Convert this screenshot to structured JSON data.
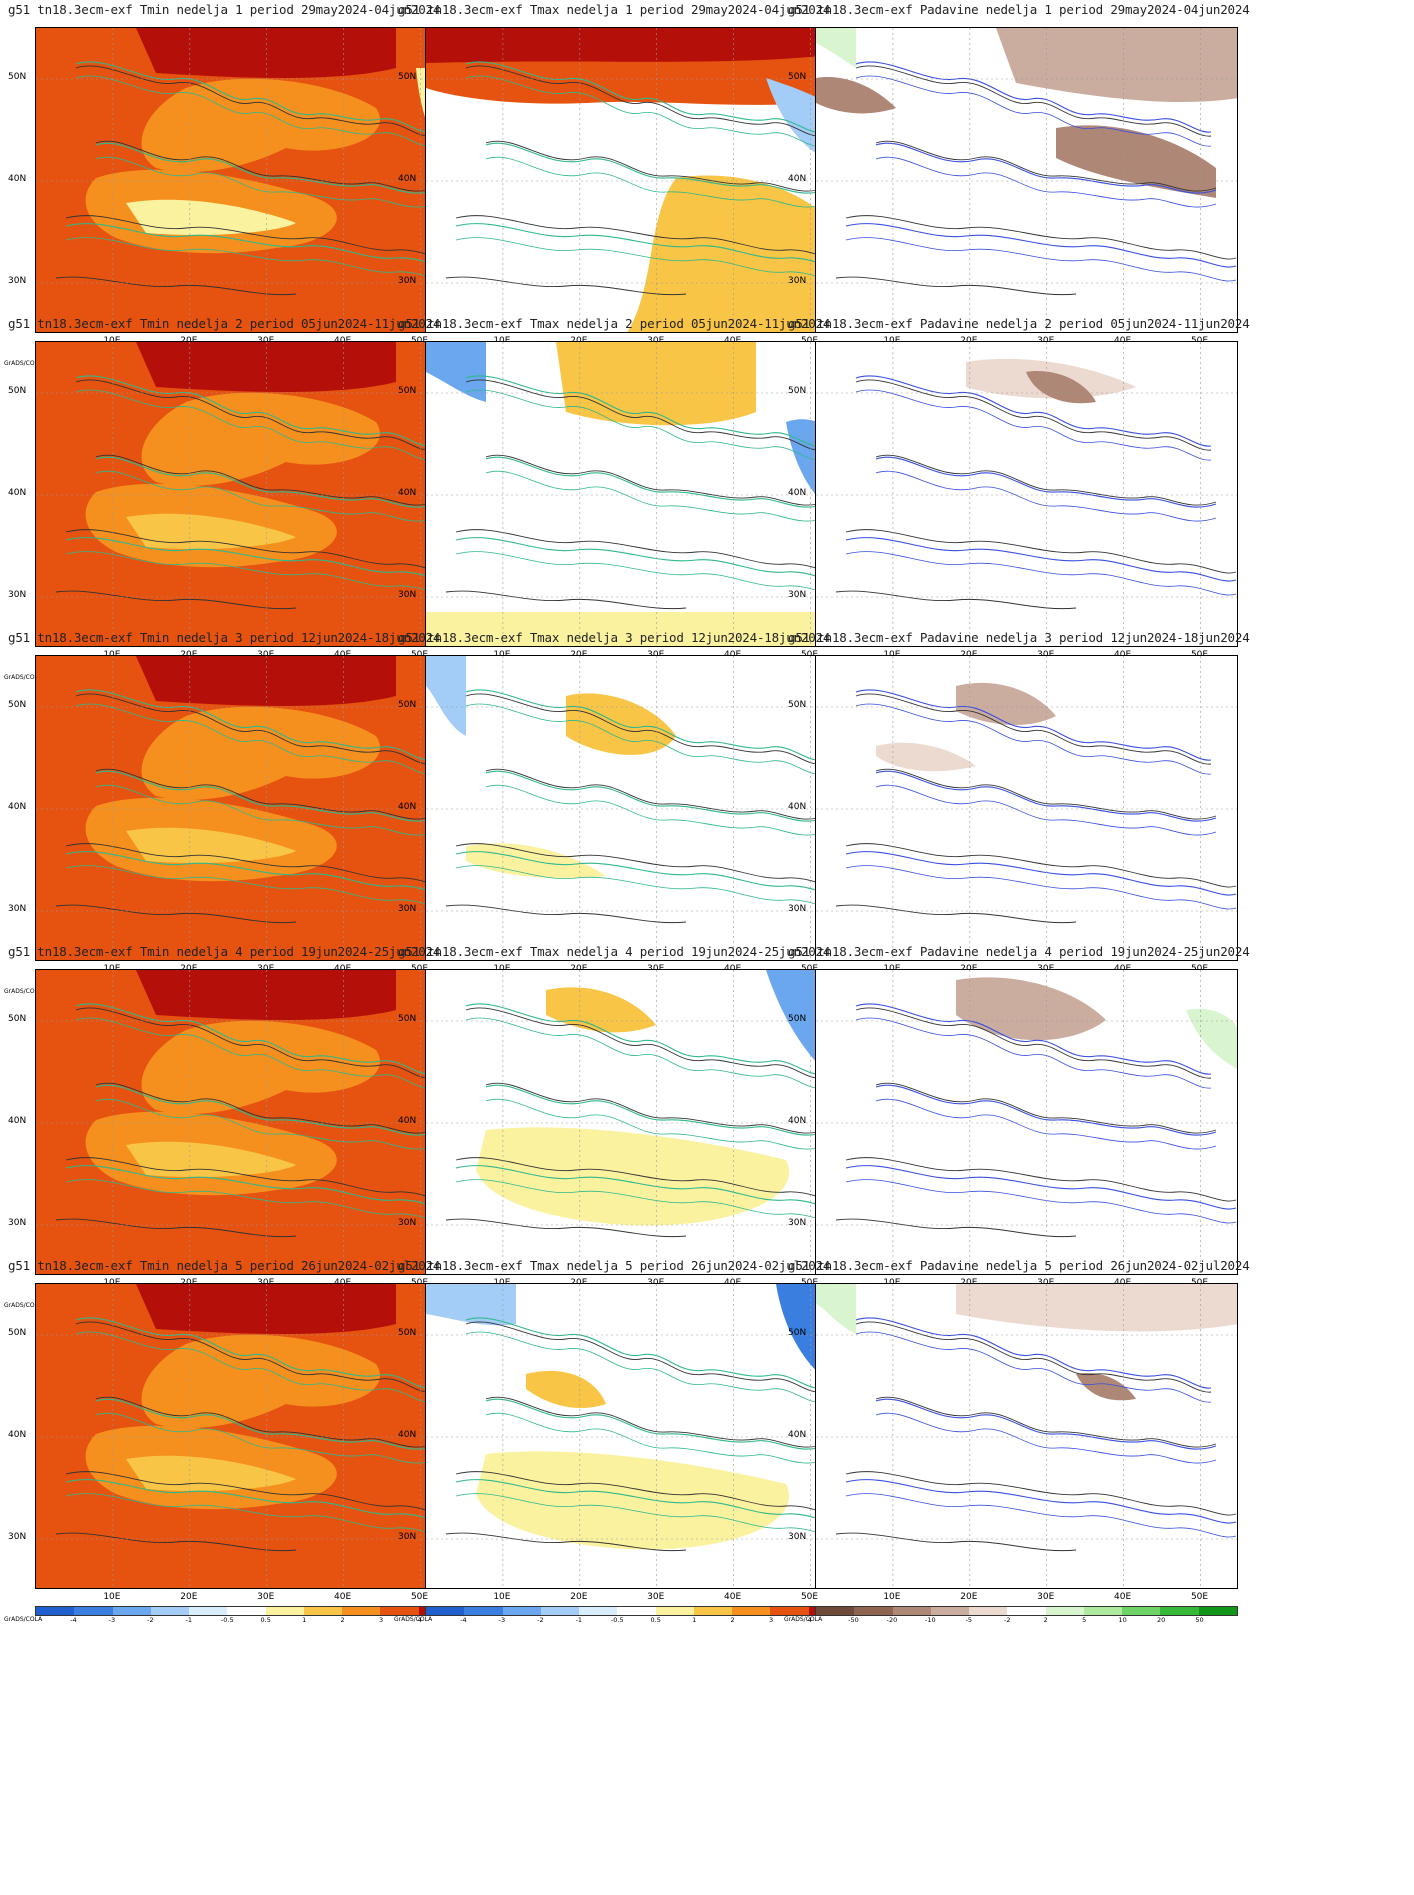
{
  "panels": [
    {
      "title": "g51  tn18.3ecm-exf Tmin nedelja 1 period 29may2024-04jun2024",
      "kind": "tmin"
    },
    {
      "title": "g51  tn18.3ecm-exf Tmax nedelja 1 period 29may2024-04jun2024",
      "kind": "tmax"
    },
    {
      "title": "g51  tn18.3ecm-exf Padavine nedelja 1 period 29may2024-04jun2024",
      "kind": "precip"
    },
    {
      "title": "g51  tn18.3ecm-exf Tmin nedelja 2 period 05jun2024-11jun2024",
      "kind": "tmin"
    },
    {
      "title": "g51  tn18.3ecm-exf Tmax nedelja 2 period 05jun2024-11jun2024",
      "kind": "tmax"
    },
    {
      "title": "g51  tn18.3ecm-exf Padavine nedelja 2 period 05jun2024-11jun2024",
      "kind": "precip"
    },
    {
      "title": "g51  tn18.3ecm-exf Tmin nedelja 3 period 12jun2024-18jun2024",
      "kind": "tmin"
    },
    {
      "title": "g51  tn18.3ecm-exf Tmax nedelja 3 period 12jun2024-18jun2024",
      "kind": "tmax"
    },
    {
      "title": "g51  tn18.3ecm-exf Padavine nedelja 3 period 12jun2024-18jun2024",
      "kind": "precip"
    },
    {
      "title": "g51  tn18.3ecm-exf Tmin nedelja 4 period 19jun2024-25jun2024",
      "kind": "tmin"
    },
    {
      "title": "g51  tn18.3ecm-exf Tmax nedelja 4 period 19jun2024-25jun2024",
      "kind": "tmax"
    },
    {
      "title": "g51  tn18.3ecm-exf Padavine nedelja 4 period 19jun2024-25jun2024",
      "kind": "precip"
    },
    {
      "title": "g51  tn18.3ecm-exf Tmin nedelja 5 period 26jun2024-02jul2024",
      "kind": "tmin"
    },
    {
      "title": "g51  tn18.3ecm-exf Tmax nedelja 5 period 26jun2024-02jul2024",
      "kind": "tmax"
    },
    {
      "title": "g51  tn18.3ecm-exf Padavine nedelja 5 period 26jun2024-02jul2024",
      "kind": "precip"
    }
  ],
  "axes": {
    "lat_labels": [
      "50N",
      "40N",
      "30N"
    ],
    "lon_labels": [
      "10E",
      "20E",
      "30E",
      "40E",
      "50E"
    ]
  },
  "credit": "GrADS/COLA",
  "scales": {
    "temp": {
      "ticks": [
        "-4",
        "-3",
        "-2",
        "-1",
        "-0.5",
        "0.5",
        "1",
        "2",
        "3",
        "4"
      ],
      "colors": [
        "#1f5fcf",
        "#3a7fe0",
        "#6aa7ef",
        "#a3cdf7",
        "#d8eefc",
        "#ffffff",
        "#fbf2a0",
        "#f9c546",
        "#f5901e",
        "#e65310",
        "#b40f08"
      ]
    },
    "precip": {
      "ticks": [
        "-50",
        "-20",
        "-10",
        "-5",
        "-2",
        "2",
        "5",
        "10",
        "20",
        "50"
      ],
      "colors": [
        "#6e4a3a",
        "#8f6552",
        "#ae8777",
        "#cbada0",
        "#ecd9d0",
        "#ffffff",
        "#d9f5d0",
        "#aeeaa0",
        "#6fd467",
        "#36b838",
        "#11961a"
      ]
    }
  }
}
